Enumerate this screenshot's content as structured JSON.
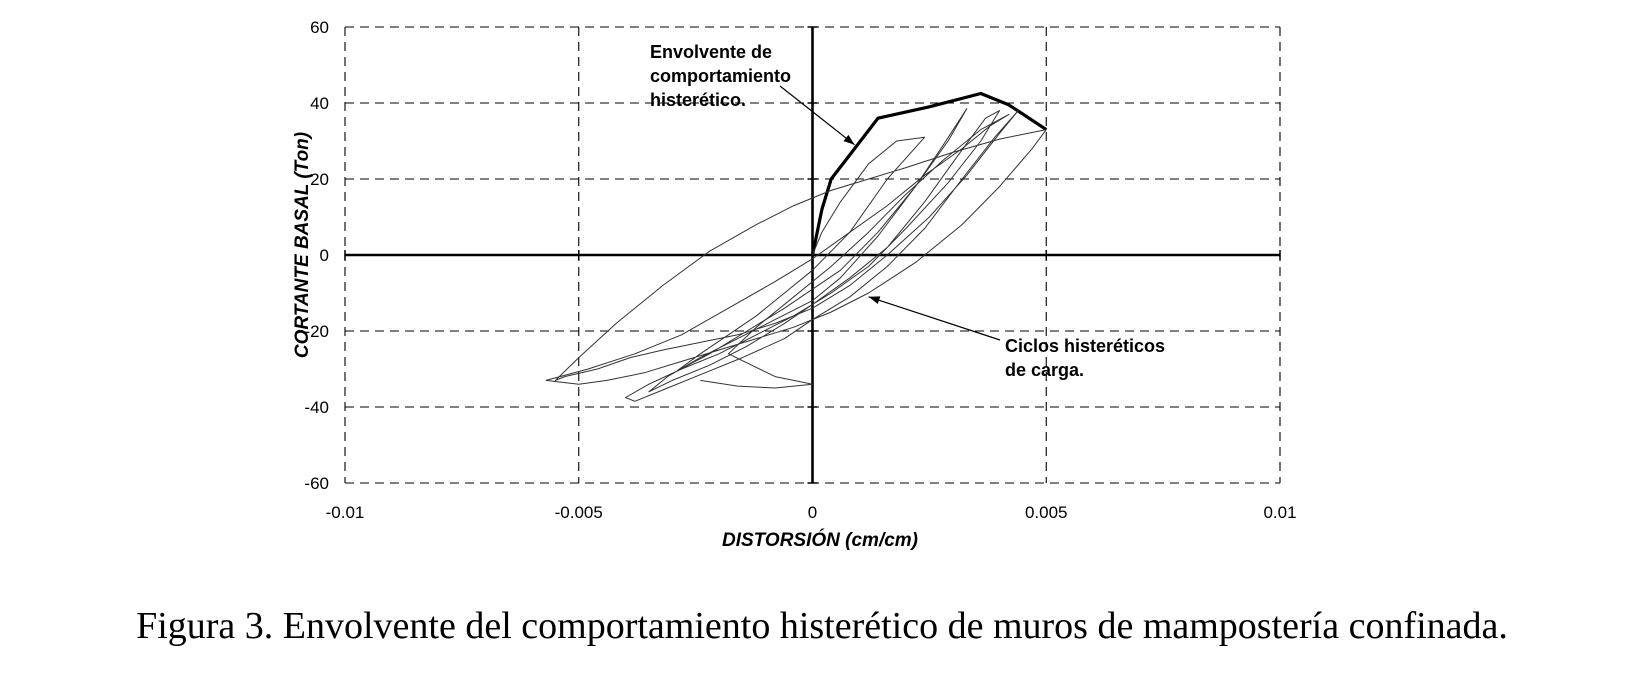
{
  "chart_data": {
    "type": "line",
    "xlabel": "DISTORSIÓN (cm/cm)",
    "ylabel": "CORTANTE BASAL (Ton)",
    "xlim": [
      -0.01,
      0.01
    ],
    "ylim": [
      -60,
      60
    ],
    "xticks": [
      -0.01,
      -0.005,
      0,
      0.005,
      0.01
    ],
    "xtick_labels": [
      "-0.01",
      "-0.005",
      "0",
      "0.005",
      "0.01"
    ],
    "yticks": [
      -60,
      -40,
      -20,
      0,
      20,
      40,
      60
    ],
    "ytick_labels": [
      "-60",
      "-40",
      "-20",
      "0",
      "20",
      "40",
      "60"
    ],
    "grid": true,
    "legend": "none",
    "series": [
      {
        "values": [
          [
            0,
            0
          ],
          [
            0.0002,
            12
          ],
          [
            0.0004,
            20
          ],
          [
            0.0009,
            28
          ],
          [
            0.0014,
            36
          ],
          [
            0.0025,
            39
          ],
          [
            0.0036,
            42.5
          ],
          [
            0.0042,
            39.5
          ],
          [
            0.005,
            33
          ]
        ]
      },
      {
        "values": [
          [
            0,
            0
          ],
          [
            0.0002,
            6
          ],
          [
            0.0006,
            14
          ],
          [
            0.0012,
            24
          ],
          [
            0.0018,
            30
          ],
          [
            0.0024,
            31
          ],
          [
            0.0016,
            20
          ],
          [
            0.0008,
            6
          ],
          [
            0.0,
            -4
          ],
          [
            -0.0006,
            -10
          ],
          [
            -0.0012,
            -16
          ],
          [
            -0.0018,
            -21
          ],
          [
            -0.0024,
            -26
          ],
          [
            -0.0029,
            -30.5
          ],
          [
            -0.0022,
            -26
          ],
          [
            -0.0014,
            -20
          ],
          [
            -0.0006,
            -14
          ],
          [
            0.0,
            -9
          ],
          [
            0.0006,
            -4
          ],
          [
            0.0014,
            6
          ],
          [
            0.0022,
            18
          ],
          [
            0.0028,
            29
          ],
          [
            0.0033,
            38.5
          ],
          [
            0.0029,
            30
          ],
          [
            0.0022,
            18
          ],
          [
            0.0014,
            5
          ],
          [
            0.0006,
            -6
          ],
          [
            0.0,
            -12
          ],
          [
            -0.0008,
            -17
          ],
          [
            -0.0016,
            -22
          ],
          [
            -0.0024,
            -27
          ],
          [
            -0.0031,
            -32
          ],
          [
            -0.0035,
            -36
          ],
          [
            -0.003,
            -33
          ],
          [
            -0.0022,
            -29
          ],
          [
            -0.0014,
            -24
          ],
          [
            -0.0006,
            -18
          ],
          [
            0.0,
            -13
          ],
          [
            0.0008,
            -6
          ],
          [
            0.0016,
            2
          ],
          [
            0.0024,
            14
          ],
          [
            0.0031,
            26
          ],
          [
            0.0037,
            36
          ],
          [
            0.004,
            38
          ],
          [
            0.0036,
            30
          ],
          [
            0.0029,
            19
          ],
          [
            0.002,
            7
          ],
          [
            0.0012,
            -3
          ],
          [
            0.0004,
            -10
          ],
          [
            -0.0004,
            -16
          ],
          [
            -0.0012,
            -21
          ],
          [
            -0.002,
            -26
          ],
          [
            -0.0028,
            -30
          ],
          [
            -0.0035,
            -34
          ],
          [
            -0.004,
            -37.5
          ],
          [
            -0.0038,
            -38.5
          ],
          [
            -0.0031,
            -35
          ],
          [
            -0.0023,
            -31
          ],
          [
            -0.0015,
            -27
          ],
          [
            -0.0006,
            -22
          ],
          [
            0.0,
            -17
          ],
          [
            0.0008,
            -11
          ],
          [
            0.0016,
            -3
          ],
          [
            0.0024,
            7
          ],
          [
            0.0032,
            20
          ],
          [
            0.0039,
            31
          ],
          [
            0.0044,
            38
          ],
          [
            0.004,
            32
          ],
          [
            0.0033,
            21
          ],
          [
            0.0025,
            10
          ],
          [
            0.0016,
            0
          ],
          [
            0.0008,
            -8
          ],
          [
            0.0,
            -14
          ],
          [
            -0.0008,
            -18
          ],
          [
            -0.0016,
            -21
          ],
          [
            -0.0024,
            -23
          ],
          [
            -0.0032,
            -25
          ],
          [
            -0.0039,
            -27
          ],
          [
            -0.0046,
            -30
          ],
          [
            -0.0053,
            -32
          ],
          [
            -0.0055,
            -33
          ],
          [
            -0.005,
            -27
          ],
          [
            -0.0042,
            -18
          ],
          [
            -0.0032,
            -8
          ],
          [
            -0.0022,
            1
          ],
          [
            -0.0012,
            8
          ],
          [
            -0.0004,
            13
          ],
          [
            0.0004,
            17
          ],
          [
            0.0012,
            20
          ],
          [
            0.002,
            23
          ],
          [
            0.003,
            27
          ],
          [
            0.004,
            30.5
          ],
          [
            0.0048,
            32.5
          ],
          [
            0.005,
            33
          ],
          [
            0.0047,
            28
          ],
          [
            0.004,
            18
          ],
          [
            0.0032,
            8
          ],
          [
            0.0022,
            -2
          ],
          [
            0.0012,
            -10
          ],
          [
            0.0004,
            -15
          ],
          [
            -0.0004,
            -19
          ],
          [
            -0.0012,
            -22
          ],
          [
            -0.002,
            -25
          ],
          [
            -0.0028,
            -28
          ],
          [
            -0.0036,
            -31
          ],
          [
            -0.0044,
            -33
          ],
          [
            -0.005,
            -34
          ],
          [
            -0.0057,
            -33
          ]
        ]
      },
      {
        "values": [
          [
            -0.0057,
            -33
          ],
          [
            -0.0048,
            -30
          ],
          [
            -0.0038,
            -26
          ],
          [
            -0.0028,
            -21
          ],
          [
            -0.0018,
            -14
          ],
          [
            -0.0008,
            -7
          ],
          [
            0.0,
            -1
          ],
          [
            0.0008,
            6
          ],
          [
            0.0016,
            13
          ],
          [
            0.0024,
            21
          ],
          [
            0.0032,
            28
          ],
          [
            0.0038,
            34
          ],
          [
            0.0042,
            37
          ],
          [
            0.0036,
            33
          ],
          [
            0.0028,
            25
          ],
          [
            0.002,
            16
          ],
          [
            0.0012,
            6
          ],
          [
            0.0004,
            -3
          ],
          [
            -0.0004,
            -11
          ],
          [
            -0.0012,
            -19
          ],
          [
            -0.0018,
            -26
          ],
          [
            -0.0008,
            -32
          ],
          [
            0.0,
            -34
          ],
          [
            -0.0008,
            -35
          ],
          [
            -0.0016,
            -34.5
          ],
          [
            -0.0024,
            -33
          ]
        ]
      }
    ],
    "annotations": [
      {
        "text": [
          "Envolvente de",
          "comportamiento",
          "histerético."
        ],
        "arrow_to": [
          0.0009,
          29
        ]
      },
      {
        "text": [
          "Ciclos histeréticos",
          "de carga."
        ],
        "arrow_to": [
          0.0012,
          -11
        ]
      }
    ]
  },
  "caption": "Figura 3. Envolvente del comportamiento histerético de muros de mampostería confinada."
}
